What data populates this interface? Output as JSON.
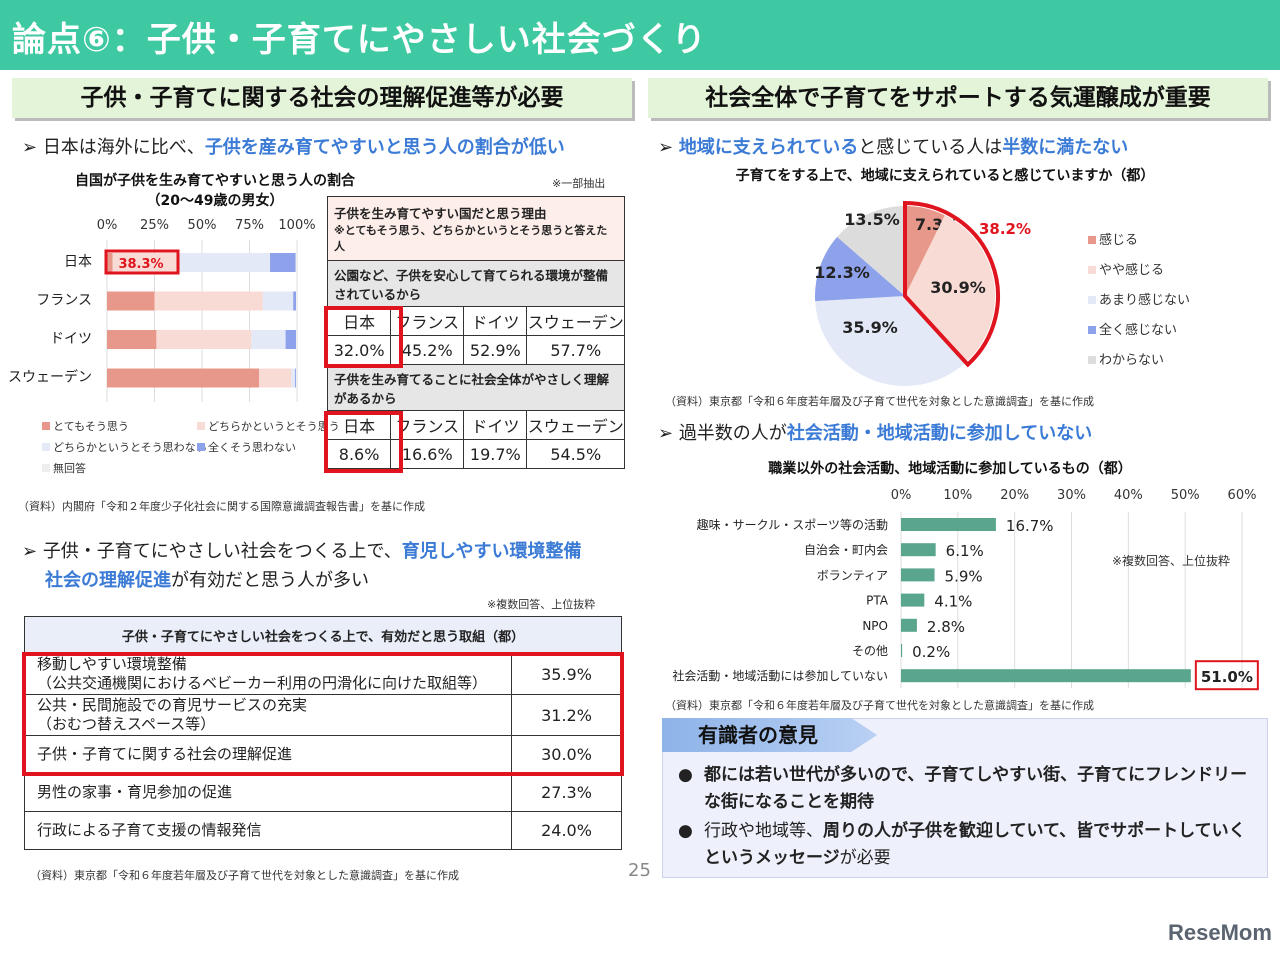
{
  "header": {
    "title": "論点⑥：子供・子育てにやさしい社会づくり"
  },
  "left": {
    "heading": "子供・子育てに関する社会の理解促進等が必要",
    "bullet1_pre": "日本は海外に比べ、",
    "bullet1_hl": "子供を産み育てやすいと思う人の割合が低い",
    "note_partial": "※一部抽出",
    "reasons": {
      "title": "子供を生み育てやすい国だと思う理由",
      "subtitle": "※とてもそう思う、どちらかというとそう思うと答えた人",
      "q1": "公園など、子供を安心して育てられる環境が整備されているから",
      "q2": "子供を生み育てることに社会全体がやさしく理解があるから",
      "countries": [
        "日本",
        "フランス",
        "ドイツ",
        "スウェーデン"
      ],
      "q1_values": [
        "32.0%",
        "45.2%",
        "52.9%",
        "57.7%"
      ],
      "q2_values": [
        "8.6%",
        "16.6%",
        "19.7%",
        "54.5%"
      ]
    },
    "source1": "（資料）内閣府「令和２年度少子化社会に関する国際意識調査報告書」を基に作成",
    "bullet2_pre": "子供・子育てにやさしい社会をつくる上で、",
    "bullet2_hl1": "育児しやすい環境整備",
    "bullet2_mid": "や",
    "bullet2_hl2": "社会の理解促進",
    "bullet2_post": "が有効だと思う人が多い",
    "note_multi": "※複数回答、上位抜粋",
    "measures": {
      "title": "子供・子育てにやさしい社会をつくる上で、有効だと思う取組（都）",
      "rows": [
        {
          "label": "移動しやすい環境整備",
          "sub": "（公共交通機関におけるベビーカー利用の円滑化に向けた取組等）",
          "value": "35.9%"
        },
        {
          "label": "公共・民間施設での育児サービスの充実",
          "sub": "（おむつ替えスペース等）",
          "value": "31.2%"
        },
        {
          "label": "子供・子育てに関する社会の理解促進",
          "sub": "",
          "value": "30.0%"
        },
        {
          "label": "男性の家事・育児参加の促進",
          "sub": "",
          "value": "27.3%"
        },
        {
          "label": "行政による子育て支援の情報発信",
          "sub": "",
          "value": "24.0%"
        }
      ]
    },
    "source2": "（資料）東京都「令和６年度若年層及び子育て世代を対象とした意識調査」を基に作成"
  },
  "page_number": "25",
  "right": {
    "heading": "社会全体で子育てをサポートする気運醸成が重要",
    "bullet1_hl1": "地域に支えられている",
    "bullet1_mid": "と感じている人は",
    "bullet1_hl2": "半数に満たない",
    "source1": "（資料）東京都「令和６年度若年層及び子育て世代を対象とした意識調査」を基に作成",
    "bullet2_pre": "過半数の人が",
    "bullet2_hl": "社会活動・地域活動に参加していない",
    "note_multi": "※複数回答、上位抜粋",
    "source2": "（資料）東京都「令和６年度若年層及び子育て世代を対象とした意識調査」を基に作成",
    "expert": {
      "title": "有識者の意見",
      "items": [
        {
          "bold": "都には若い世代が多いので、子育てしやすい街、子育てにフレンドリーな街になることを期待",
          "normal": ""
        },
        {
          "pre": "行政や地域等、",
          "bold": "周りの人が子供を歓迎していて、皆でサポートしていくというメッセージ",
          "post": "が必要"
        }
      ]
    }
  },
  "logo": "ReseMom",
  "chart_data": [
    {
      "type": "bar",
      "stacked": true,
      "orientation": "horizontal",
      "title": "自国が子供を生み育てやすいと思う人の割合（20～49歳の男女）",
      "categories": [
        "日本",
        "フランス",
        "ドイツ",
        "スウェーデン"
      ],
      "xticks": [
        "0%",
        "25%",
        "50%",
        "75%",
        "100%"
      ],
      "xlim": [
        0,
        100
      ],
      "highlight": "38.3%",
      "series": [
        {
          "name": "とてもそう思う",
          "color": "#e8988a",
          "values": [
            3,
            25,
            26,
            80
          ]
        },
        {
          "name": "どちらかというとそう思う",
          "color": "#f8dbd4",
          "values": [
            35.3,
            57,
            50,
            17
          ]
        },
        {
          "name": "どちらかというとそう思わない",
          "color": "#e4e9f8",
          "values": [
            47.5,
            16,
            18,
            2
          ]
        },
        {
          "name": "全くそう思わない",
          "color": "#8ea2ec",
          "values": [
            13.5,
            1.5,
            5.5,
            0.5
          ]
        },
        {
          "name": "無回答",
          "color": "#eeeeee",
          "values": [
            0.7,
            0.5,
            0.5,
            0.5
          ]
        }
      ],
      "legend": "bottom"
    },
    {
      "type": "pie",
      "title": "子育てをする上で、地域に支えられていると感じていますか（都）",
      "slices": [
        {
          "name": "感じる",
          "value": 7.3,
          "label": "7.3%",
          "color": "#e8988a"
        },
        {
          "name": "やや感じる",
          "value": 30.9,
          "label": "30.9%",
          "color": "#f8dbd4"
        },
        {
          "name": "あまり感じない",
          "value": 35.9,
          "label": "35.9%",
          "color": "#e4e9f8"
        },
        {
          "name": "全く感じない",
          "value": 12.3,
          "label": "12.3%",
          "color": "#8ea2ec"
        },
        {
          "name": "わからない",
          "value": 13.5,
          "label": "13.5%",
          "color": "#dcdcdc"
        }
      ],
      "highlight": "38.2%",
      "legend": "right"
    },
    {
      "type": "bar",
      "orientation": "horizontal",
      "title": "職業以外の社会活動、地域活動に参加しているもの（都）",
      "categories": [
        "趣味・サークル・スポーツ等の活動",
        "自治会・町内会",
        "ボランティア",
        "PTA",
        "NPO",
        "その他",
        "社会活動・地域活動には参加していない"
      ],
      "values": [
        16.7,
        6.1,
        5.9,
        4.1,
        2.8,
        0.2,
        51.0
      ],
      "labels": [
        "16.7%",
        "6.1%",
        "5.9%",
        "4.1%",
        "2.8%",
        "0.2%",
        "51.0%"
      ],
      "xticks": [
        "0%",
        "10%",
        "20%",
        "30%",
        "40%",
        "50%",
        "60%"
      ],
      "xlim": [
        0,
        60
      ],
      "color": "#5aa58d",
      "grid": true
    }
  ]
}
